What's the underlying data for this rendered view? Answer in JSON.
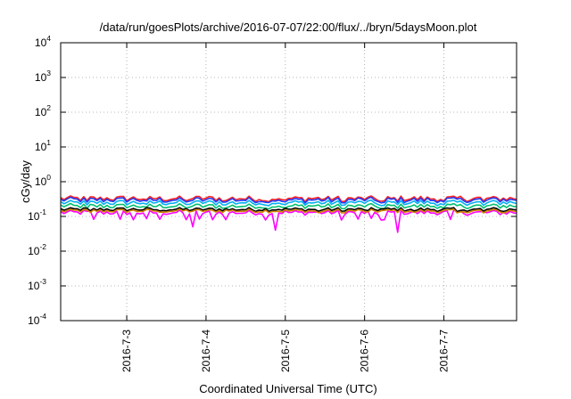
{
  "chart_data": {
    "type": "line",
    "title": "/data/run/goesPlots/archive/2016-07-07/22:00/flux/../bryn/5daysMoon.plot",
    "xlabel": "Coordinated Universal Time (UTC)",
    "ylabel": "cGy/day",
    "yscale": "log",
    "ylim": [
      0.0001,
      10000
    ],
    "xlim": [
      "2016-07-02 04:00",
      "2016-07-07 22:00"
    ],
    "grid": true,
    "y_ticks": [
      {
        "value": 0.0001,
        "base": "10",
        "exp": "-4"
      },
      {
        "value": 0.001,
        "base": "10",
        "exp": "-3"
      },
      {
        "value": 0.01,
        "base": "10",
        "exp": "-2"
      },
      {
        "value": 0.1,
        "base": "10",
        "exp": "-1"
      },
      {
        "value": 1,
        "base": "10",
        "exp": "0"
      },
      {
        "value": 10,
        "base": "10",
        "exp": "1"
      },
      {
        "value": 100,
        "base": "10",
        "exp": "2"
      },
      {
        "value": 1000,
        "base": "10",
        "exp": "3"
      },
      {
        "value": 10000,
        "base": "10",
        "exp": "4"
      }
    ],
    "x_ticks": [
      {
        "value": "2016-07-03 00:00",
        "label": "2016-7-3"
      },
      {
        "value": "2016-07-04 00:00",
        "label": "2016-7-4"
      },
      {
        "value": "2016-07-05 00:00",
        "label": "2016-7-5"
      },
      {
        "value": "2016-07-06 00:00",
        "label": "2016-7-6"
      },
      {
        "value": "2016-07-07 00:00",
        "label": "2016-7-7"
      }
    ],
    "series": [
      {
        "color": "#ff00ff",
        "base": 0.13,
        "amp": 0.16,
        "dip_every": 4,
        "dip_depth": 0.42
      },
      {
        "color": "#ff2020",
        "base": 0.33,
        "amp": 0.18,
        "dip_every": 6,
        "dip_depth": 0.2
      },
      {
        "color": "#1e3cff",
        "base": 0.3,
        "amp": 0.18,
        "dip_every": 6,
        "dip_depth": 0.2
      },
      {
        "color": "#00b0f0",
        "base": 0.25,
        "amp": 0.17,
        "dip_every": 6,
        "dip_depth": 0.2
      },
      {
        "color": "#00c070",
        "base": 0.2,
        "amp": 0.16,
        "dip_every": 6,
        "dip_depth": 0.18
      },
      {
        "color": "#000000",
        "base": 0.16,
        "amp": 0.12,
        "dip_every": 7,
        "dip_depth": 0.15
      },
      {
        "color": "#d08000",
        "base": 0.145,
        "amp": 0.12,
        "dip_every": 7,
        "dip_depth": 0.15
      }
    ],
    "sampling_hours": 1,
    "magenta_deep_dips": [
      {
        "time": "2016-07-04 21:00",
        "value": 0.04
      },
      {
        "time": "2016-07-06 10:00",
        "value": 0.035
      },
      {
        "time": "2016-07-03 20:00",
        "value": 0.05
      }
    ]
  }
}
